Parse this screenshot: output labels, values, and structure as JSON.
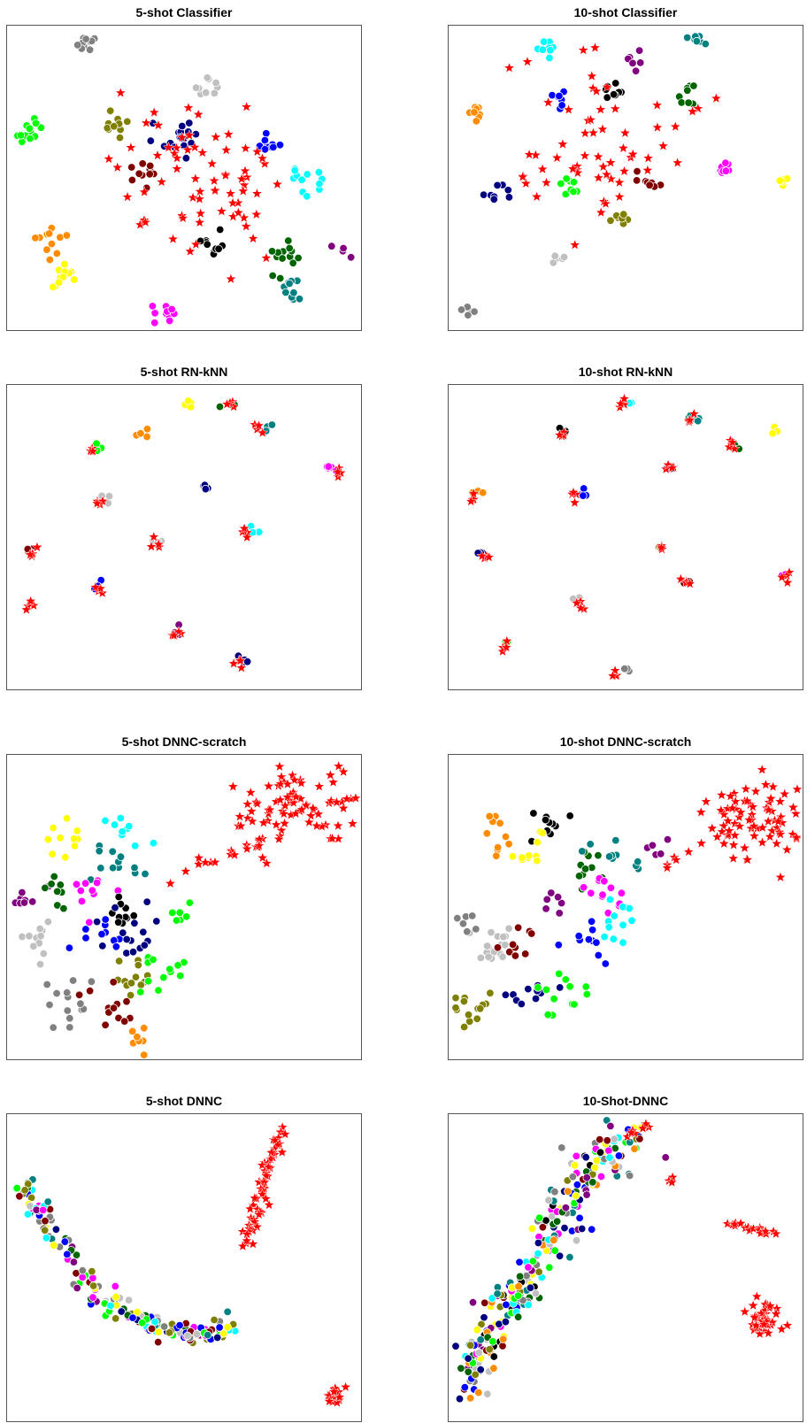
{
  "chart_data": [
    {
      "type": "scatter",
      "title": "5-shot Classifier",
      "axes": "hidden",
      "grid": false,
      "clusters": [
        {
          "color": "#808080",
          "cx": 0.22,
          "cy": 0.06,
          "n": 10,
          "spread": 0.015
        },
        {
          "color": "#c0c0c0",
          "cx": 0.57,
          "cy": 0.2,
          "n": 9,
          "spread": 0.017
        },
        {
          "color": "#00ff00",
          "cx": 0.06,
          "cy": 0.35,
          "n": 12,
          "spread": 0.017
        },
        {
          "color": "#808000",
          "cx": 0.3,
          "cy": 0.32,
          "n": 10,
          "spread": 0.02
        },
        {
          "color": "#000080",
          "cx": 0.48,
          "cy": 0.38,
          "n": 18,
          "spread": 0.04
        },
        {
          "color": "#800000",
          "cx": 0.38,
          "cy": 0.48,
          "n": 10,
          "spread": 0.02
        },
        {
          "color": "#0000ff",
          "cx": 0.73,
          "cy": 0.38,
          "n": 10,
          "spread": 0.02
        },
        {
          "color": "#00ffff",
          "cx": 0.82,
          "cy": 0.5,
          "n": 12,
          "spread": 0.025
        },
        {
          "color": "#ff8c00",
          "cx": 0.12,
          "cy": 0.71,
          "n": 12,
          "spread": 0.025
        },
        {
          "color": "#ffff00",
          "cx": 0.16,
          "cy": 0.81,
          "n": 12,
          "spread": 0.02
        },
        {
          "color": "#000000",
          "cx": 0.57,
          "cy": 0.72,
          "n": 10,
          "spread": 0.02
        },
        {
          "color": "#006400",
          "cx": 0.76,
          "cy": 0.77,
          "n": 14,
          "spread": 0.035
        },
        {
          "color": "#008080",
          "cx": 0.8,
          "cy": 0.87,
          "n": 10,
          "spread": 0.02
        },
        {
          "color": "#ff00ff",
          "cx": 0.44,
          "cy": 0.94,
          "n": 10,
          "spread": 0.015
        },
        {
          "color": "#800080",
          "cx": 0.94,
          "cy": 0.73,
          "n": 4,
          "spread": 0.01
        }
      ],
      "stars": {
        "color": "#ff0000",
        "n": 70,
        "cx": 0.58,
        "cy": 0.5,
        "sx": 0.15,
        "sy": 0.12
      }
    },
    {
      "type": "scatter",
      "title": "10-shot Classifier",
      "axes": "hidden",
      "grid": false,
      "clusters": [
        {
          "color": "#00ffff",
          "cx": 0.27,
          "cy": 0.08,
          "n": 8,
          "spread": 0.015
        },
        {
          "color": "#008080",
          "cx": 0.7,
          "cy": 0.05,
          "n": 8,
          "spread": 0.015
        },
        {
          "color": "#800080",
          "cx": 0.53,
          "cy": 0.12,
          "n": 6,
          "spread": 0.015
        },
        {
          "color": "#000000",
          "cx": 0.46,
          "cy": 0.22,
          "n": 8,
          "spread": 0.015
        },
        {
          "color": "#0000ff",
          "cx": 0.31,
          "cy": 0.24,
          "n": 8,
          "spread": 0.015
        },
        {
          "color": "#006400",
          "cx": 0.67,
          "cy": 0.22,
          "n": 8,
          "spread": 0.02
        },
        {
          "color": "#ff8c00",
          "cx": 0.08,
          "cy": 0.29,
          "n": 8,
          "spread": 0.015
        },
        {
          "color": "#ff00ff",
          "cx": 0.78,
          "cy": 0.46,
          "n": 8,
          "spread": 0.015
        },
        {
          "color": "#ffff00",
          "cx": 0.94,
          "cy": 0.51,
          "n": 6,
          "spread": 0.01
        },
        {
          "color": "#000080",
          "cx": 0.14,
          "cy": 0.54,
          "n": 8,
          "spread": 0.015
        },
        {
          "color": "#00ff00",
          "cx": 0.33,
          "cy": 0.52,
          "n": 8,
          "spread": 0.015
        },
        {
          "color": "#800000",
          "cx": 0.57,
          "cy": 0.51,
          "n": 8,
          "spread": 0.02
        },
        {
          "color": "#808000",
          "cx": 0.5,
          "cy": 0.63,
          "n": 8,
          "spread": 0.015
        },
        {
          "color": "#c0c0c0",
          "cx": 0.31,
          "cy": 0.76,
          "n": 6,
          "spread": 0.012
        },
        {
          "color": "#808080",
          "cx": 0.05,
          "cy": 0.94,
          "n": 5,
          "spread": 0.01
        }
      ],
      "stars": {
        "color": "#ff0000",
        "n": 60,
        "cx": 0.42,
        "cy": 0.4,
        "sx": 0.12,
        "sy": 0.12
      }
    },
    {
      "type": "scatter",
      "title": "5-shot RN-kNN",
      "axes": "hidden",
      "grid": false,
      "clusters": [
        {
          "color": "#ffff00",
          "cx": 0.51,
          "cy": 0.06,
          "n": 4,
          "spread": 0.008
        },
        {
          "color": "#006400",
          "cx": 0.62,
          "cy": 0.06,
          "n": 4,
          "spread": 0.008
        },
        {
          "color": "#008080",
          "cx": 0.73,
          "cy": 0.14,
          "n": 4,
          "spread": 0.008
        },
        {
          "color": "#ff8c00",
          "cx": 0.38,
          "cy": 0.16,
          "n": 4,
          "spread": 0.008
        },
        {
          "color": "#00ff00",
          "cx": 0.25,
          "cy": 0.21,
          "n": 4,
          "spread": 0.008
        },
        {
          "color": "#ff00ff",
          "cx": 0.91,
          "cy": 0.27,
          "n": 5,
          "spread": 0.01
        },
        {
          "color": "#000080",
          "cx": 0.56,
          "cy": 0.33,
          "n": 5,
          "spread": 0.008
        },
        {
          "color": "#c0c0c0",
          "cx": 0.28,
          "cy": 0.37,
          "n": 4,
          "spread": 0.008
        },
        {
          "color": "#00ffff",
          "cx": 0.69,
          "cy": 0.48,
          "n": 4,
          "spread": 0.008
        },
        {
          "color": "#c0c0c0",
          "cx": 0.42,
          "cy": 0.51,
          "n": 4,
          "spread": 0.008
        },
        {
          "color": "#800000",
          "cx": 0.06,
          "cy": 0.54,
          "n": 4,
          "spread": 0.008
        },
        {
          "color": "#0000ff",
          "cx": 0.26,
          "cy": 0.66,
          "n": 4,
          "spread": 0.008
        },
        {
          "color": "#800080",
          "cx": 0.48,
          "cy": 0.8,
          "n": 3,
          "spread": 0.008
        },
        {
          "color": "#000080",
          "cx": 0.66,
          "cy": 0.9,
          "n": 4,
          "spread": 0.008
        }
      ],
      "star_groups": [
        [
          0.63,
          0.06
        ],
        [
          0.71,
          0.14
        ],
        [
          0.24,
          0.21
        ],
        [
          0.93,
          0.28
        ],
        [
          0.26,
          0.38
        ],
        [
          0.42,
          0.52
        ],
        [
          0.67,
          0.49
        ],
        [
          0.07,
          0.55
        ],
        [
          0.26,
          0.67
        ],
        [
          0.06,
          0.72
        ],
        [
          0.48,
          0.81
        ],
        [
          0.65,
          0.91
        ]
      ],
      "star_color": "#ff0000"
    },
    {
      "type": "scatter",
      "title": "10-shot RN-kNN",
      "axes": "hidden",
      "grid": false,
      "clusters": [
        {
          "color": "#00ffff",
          "cx": 0.51,
          "cy": 0.06,
          "n": 3,
          "spread": 0.006
        },
        {
          "color": "#008080",
          "cx": 0.69,
          "cy": 0.11,
          "n": 5,
          "spread": 0.008
        },
        {
          "color": "#ffff00",
          "cx": 0.91,
          "cy": 0.15,
          "n": 3,
          "spread": 0.006
        },
        {
          "color": "#000000",
          "cx": 0.32,
          "cy": 0.15,
          "n": 4,
          "spread": 0.008
        },
        {
          "color": "#006400",
          "cx": 0.81,
          "cy": 0.2,
          "n": 3,
          "spread": 0.006
        },
        {
          "color": "#000080",
          "cx": 0.62,
          "cy": 0.27,
          "n": 3,
          "spread": 0.006
        },
        {
          "color": "#0000ff",
          "cx": 0.38,
          "cy": 0.35,
          "n": 4,
          "spread": 0.008
        },
        {
          "color": "#ff8c00",
          "cx": 0.08,
          "cy": 0.35,
          "n": 3,
          "spread": 0.006
        },
        {
          "color": "#000080",
          "cx": 0.09,
          "cy": 0.55,
          "n": 3,
          "spread": 0.006
        },
        {
          "color": "#808000",
          "cx": 0.6,
          "cy": 0.53,
          "n": 3,
          "spread": 0.006
        },
        {
          "color": "#ff00ff",
          "cx": 0.94,
          "cy": 0.62,
          "n": 3,
          "spread": 0.006
        },
        {
          "color": "#800000",
          "cx": 0.67,
          "cy": 0.65,
          "n": 3,
          "spread": 0.006
        },
        {
          "color": "#c0c0c0",
          "cx": 0.36,
          "cy": 0.7,
          "n": 3,
          "spread": 0.006
        },
        {
          "color": "#00ff00",
          "cx": 0.16,
          "cy": 0.85,
          "n": 3,
          "spread": 0.006
        },
        {
          "color": "#808080",
          "cx": 0.5,
          "cy": 0.93,
          "n": 3,
          "spread": 0.006
        }
      ],
      "star_groups": [
        [
          0.49,
          0.06
        ],
        [
          0.68,
          0.11
        ],
        [
          0.32,
          0.16
        ],
        [
          0.8,
          0.2
        ],
        [
          0.62,
          0.27
        ],
        [
          0.36,
          0.36
        ],
        [
          0.07,
          0.37
        ],
        [
          0.1,
          0.56
        ],
        [
          0.6,
          0.54
        ],
        [
          0.95,
          0.63
        ],
        [
          0.67,
          0.65
        ],
        [
          0.37,
          0.72
        ],
        [
          0.16,
          0.86
        ],
        [
          0.47,
          0.94
        ]
      ],
      "star_color": "#ff0000"
    },
    {
      "type": "scatter",
      "title": "5-shot DNNC-scratch",
      "axes": "hidden",
      "grid": false,
      "clusters": [
        {
          "color": "#ffff00",
          "cx": 0.17,
          "cy": 0.26,
          "n": 10,
          "spread": 0.03
        },
        {
          "color": "#00ffff",
          "cx": 0.33,
          "cy": 0.25,
          "n": 10,
          "spread": 0.03
        },
        {
          "color": "#008080",
          "cx": 0.3,
          "cy": 0.36,
          "n": 12,
          "spread": 0.035
        },
        {
          "color": "#ff00ff",
          "cx": 0.23,
          "cy": 0.43,
          "n": 10,
          "spread": 0.03
        },
        {
          "color": "#800080",
          "cx": 0.06,
          "cy": 0.47,
          "n": 8,
          "spread": 0.02
        },
        {
          "color": "#006400",
          "cx": 0.14,
          "cy": 0.44,
          "n": 8,
          "spread": 0.03
        },
        {
          "color": "#000000",
          "cx": 0.32,
          "cy": 0.51,
          "n": 10,
          "spread": 0.03
        },
        {
          "color": "#c0c0c0",
          "cx": 0.09,
          "cy": 0.61,
          "n": 12,
          "spread": 0.03
        },
        {
          "color": "#0000ff",
          "cx": 0.27,
          "cy": 0.6,
          "n": 12,
          "spread": 0.03
        },
        {
          "color": "#000080",
          "cx": 0.37,
          "cy": 0.56,
          "n": 15,
          "spread": 0.05
        },
        {
          "color": "#808000",
          "cx": 0.35,
          "cy": 0.73,
          "n": 12,
          "spread": 0.03
        },
        {
          "color": "#00ff00",
          "cx": 0.44,
          "cy": 0.7,
          "n": 12,
          "spread": 0.035
        },
        {
          "color": "#808080",
          "cx": 0.18,
          "cy": 0.8,
          "n": 14,
          "spread": 0.04
        },
        {
          "color": "#800000",
          "cx": 0.27,
          "cy": 0.82,
          "n": 12,
          "spread": 0.035
        },
        {
          "color": "#ff8c00",
          "cx": 0.38,
          "cy": 0.93,
          "n": 8,
          "spread": 0.02
        },
        {
          "color": "#00ff00",
          "cx": 0.5,
          "cy": 0.53,
          "n": 6,
          "spread": 0.02
        }
      ],
      "stars": {
        "color": "#ff0000",
        "n": 80,
        "cx": 0.8,
        "cy": 0.18,
        "sx": 0.09,
        "sy": 0.06
      },
      "stars_tail": {
        "color": "#ff0000",
        "n": 18,
        "x0": 0.75,
        "y0": 0.28,
        "x1": 0.45,
        "y1": 0.4
      }
    },
    {
      "type": "scatter",
      "title": "10-shot DNNC-scratch",
      "axes": "hidden",
      "grid": false,
      "clusters": [
        {
          "color": "#ff8c00",
          "cx": 0.12,
          "cy": 0.25,
          "n": 10,
          "spread": 0.03
        },
        {
          "color": "#000000",
          "cx": 0.27,
          "cy": 0.22,
          "n": 10,
          "spread": 0.03
        },
        {
          "color": "#ffff00",
          "cx": 0.22,
          "cy": 0.31,
          "n": 10,
          "spread": 0.025
        },
        {
          "color": "#006400",
          "cx": 0.39,
          "cy": 0.36,
          "n": 10,
          "spread": 0.03
        },
        {
          "color": "#008080",
          "cx": 0.45,
          "cy": 0.33,
          "n": 10,
          "spread": 0.03
        },
        {
          "color": "#ff00ff",
          "cx": 0.42,
          "cy": 0.44,
          "n": 12,
          "spread": 0.03
        },
        {
          "color": "#800080",
          "cx": 0.29,
          "cy": 0.48,
          "n": 6,
          "spread": 0.02
        },
        {
          "color": "#c0c0c0",
          "cx": 0.12,
          "cy": 0.61,
          "n": 18,
          "spread": 0.04
        },
        {
          "color": "#800000",
          "cx": 0.22,
          "cy": 0.62,
          "n": 10,
          "spread": 0.035
        },
        {
          "color": "#00ffff",
          "cx": 0.48,
          "cy": 0.55,
          "n": 12,
          "spread": 0.03
        },
        {
          "color": "#0000ff",
          "cx": 0.39,
          "cy": 0.6,
          "n": 10,
          "spread": 0.035
        },
        {
          "color": "#000080",
          "cx": 0.23,
          "cy": 0.78,
          "n": 10,
          "spread": 0.035
        },
        {
          "color": "#808000",
          "cx": 0.07,
          "cy": 0.82,
          "n": 14,
          "spread": 0.04
        },
        {
          "color": "#00ff00",
          "cx": 0.31,
          "cy": 0.78,
          "n": 12,
          "spread": 0.035
        },
        {
          "color": "#808080",
          "cx": 0.04,
          "cy": 0.55,
          "n": 6,
          "spread": 0.02
        },
        {
          "color": "#800080",
          "cx": 0.6,
          "cy": 0.3,
          "n": 5,
          "spread": 0.02
        }
      ],
      "stars": {
        "color": "#ff0000",
        "n": 70,
        "cx": 0.85,
        "cy": 0.2,
        "sx": 0.07,
        "sy": 0.06
      },
      "stars_tail": {
        "color": "#ff0000",
        "n": 12,
        "x0": 0.8,
        "y0": 0.26,
        "x1": 0.6,
        "y1": 0.35
      }
    },
    {
      "type": "scatter",
      "title": "5-shot DNNC",
      "axes": "hidden",
      "grid": false,
      "arc_clusters": {
        "path": [
          [
            0.05,
            0.23
          ],
          [
            0.12,
            0.38
          ],
          [
            0.22,
            0.56
          ],
          [
            0.36,
            0.66
          ],
          [
            0.5,
            0.71
          ],
          [
            0.62,
            0.7
          ]
        ],
        "n": 170,
        "spread": 0.018,
        "colors": [
          "#00ff00",
          "#808000",
          "#c0c0c0",
          "#ff00ff",
          "#800080",
          "#006400",
          "#008080",
          "#000080",
          "#0000ff",
          "#00ffff",
          "#808080",
          "#ffff00",
          "#800000"
        ]
      },
      "stars_line": {
        "color": "#ff0000",
        "n": 60,
        "x0": 0.77,
        "y0": 0.05,
        "x1": 0.67,
        "y1": 0.43,
        "spread": 0.012
      },
      "stars": {
        "color": "#ff0000",
        "n": 18,
        "cx": 0.92,
        "cy": 0.91,
        "sx": 0.012,
        "sy": 0.02
      },
      "extra_points": [
        {
          "color": "#008080",
          "x": 0.62,
          "y": 0.64
        },
        {
          "color": "#ffff00",
          "x": 0.62,
          "y": 0.69
        }
      ]
    },
    {
      "type": "scatter",
      "title": "10-Shot-DNNC",
      "axes": "hidden",
      "grid": false,
      "arc_clusters": {
        "path": [
          [
            0.05,
            0.88
          ],
          [
            0.12,
            0.7
          ],
          [
            0.22,
            0.54
          ],
          [
            0.3,
            0.36
          ],
          [
            0.38,
            0.2
          ],
          [
            0.52,
            0.05
          ]
        ],
        "n": 260,
        "spread": 0.03,
        "colors": [
          "#00ff00",
          "#808000",
          "#c0c0c0",
          "#ff00ff",
          "#800080",
          "#006400",
          "#008080",
          "#000080",
          "#0000ff",
          "#00ffff",
          "#808080",
          "#ffff00",
          "#800000",
          "#000000",
          "#ff8c00"
        ]
      },
      "stars_line": {
        "color": "#ff0000",
        "n": 18,
        "x0": 0.78,
        "y0": 0.35,
        "x1": 0.92,
        "y1": 0.39,
        "spread": 0.008
      },
      "stars": {
        "color": "#ff0000",
        "n": 45,
        "cx": 0.89,
        "cy": 0.66,
        "sx": 0.025,
        "sy": 0.03
      },
      "extra_points": [
        {
          "color": "#800080",
          "x": 0.61,
          "y": 0.14
        }
      ],
      "star_groups": [
        [
          0.52,
          0.05
        ],
        [
          0.55,
          0.04
        ],
        [
          0.62,
          0.21
        ]
      ],
      "star_color": "#ff0000"
    }
  ]
}
